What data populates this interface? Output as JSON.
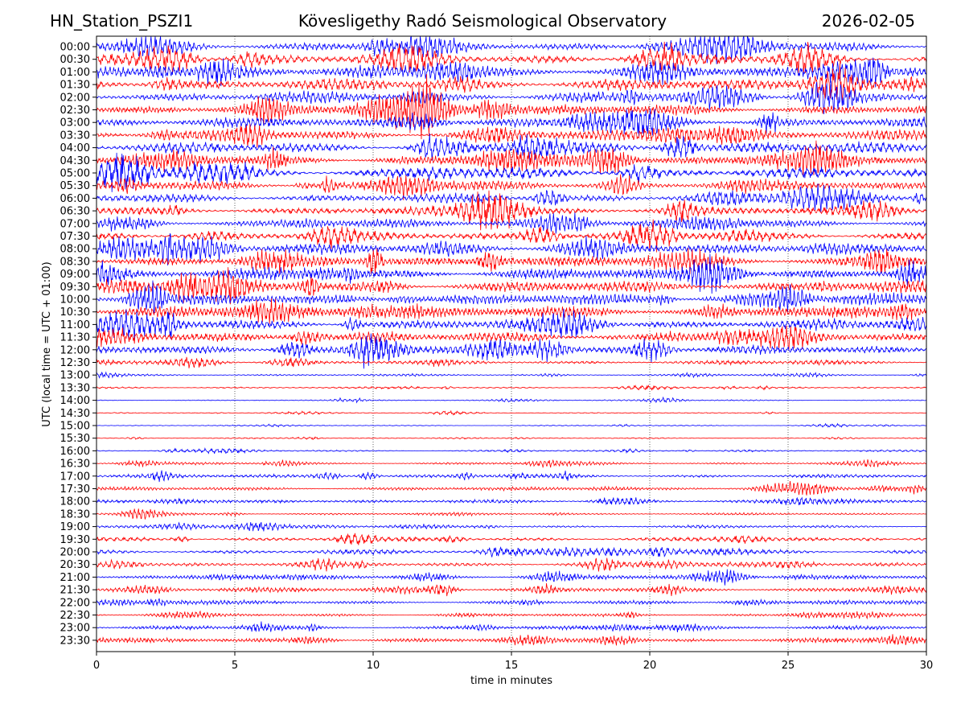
{
  "header": {
    "station": "HN_Station_PSZI1",
    "observatory": "Kövesligethy Radó Seismological Observatory",
    "date": "2026-02-05"
  },
  "chart_data": {
    "type": "line",
    "title": "Kövesligethy Radó Seismological Observatory",
    "xlabel": "time in minutes",
    "ylabel": "UTC (local time = UTC + 01:00)",
    "xlim": [
      0,
      30
    ],
    "xticks": [
      "0",
      "5",
      "10",
      "15",
      "20",
      "25",
      "30"
    ],
    "grid": "vertical dotted at x ticks",
    "row_labels": [
      "00:00",
      "00:30",
      "01:00",
      "01:30",
      "02:00",
      "02:30",
      "03:00",
      "03:30",
      "04:00",
      "04:30",
      "05:00",
      "05:30",
      "06:00",
      "06:30",
      "07:00",
      "07:30",
      "08:00",
      "08:30",
      "09:00",
      "09:30",
      "10:00",
      "10:30",
      "11:00",
      "11:30",
      "12:00",
      "12:30",
      "13:00",
      "13:30",
      "14:00",
      "14:30",
      "15:00",
      "15:30",
      "16:00",
      "16:30",
      "17:00",
      "17:30",
      "18:00",
      "18:30",
      "19:00",
      "19:30",
      "20:00",
      "20:30",
      "21:00",
      "21:30",
      "22:00",
      "22:30",
      "23:00",
      "23:30"
    ],
    "series_colors": [
      "#0000ff",
      "#ff0000"
    ],
    "relative_amplitude_by_row": [
      0.55,
      0.6,
      0.62,
      0.62,
      0.6,
      0.58,
      0.55,
      0.55,
      0.58,
      0.6,
      0.58,
      0.52,
      0.48,
      0.45,
      0.42,
      0.5,
      0.55,
      0.6,
      0.62,
      0.62,
      0.6,
      0.58,
      0.55,
      0.5,
      0.45,
      0.22,
      0.12,
      0.1,
      0.07,
      0.05,
      0.05,
      0.06,
      0.1,
      0.14,
      0.2,
      0.2,
      0.18,
      0.12,
      0.16,
      0.22,
      0.25,
      0.26,
      0.27,
      0.26,
      0.2,
      0.16,
      0.2,
      0.25
    ]
  }
}
